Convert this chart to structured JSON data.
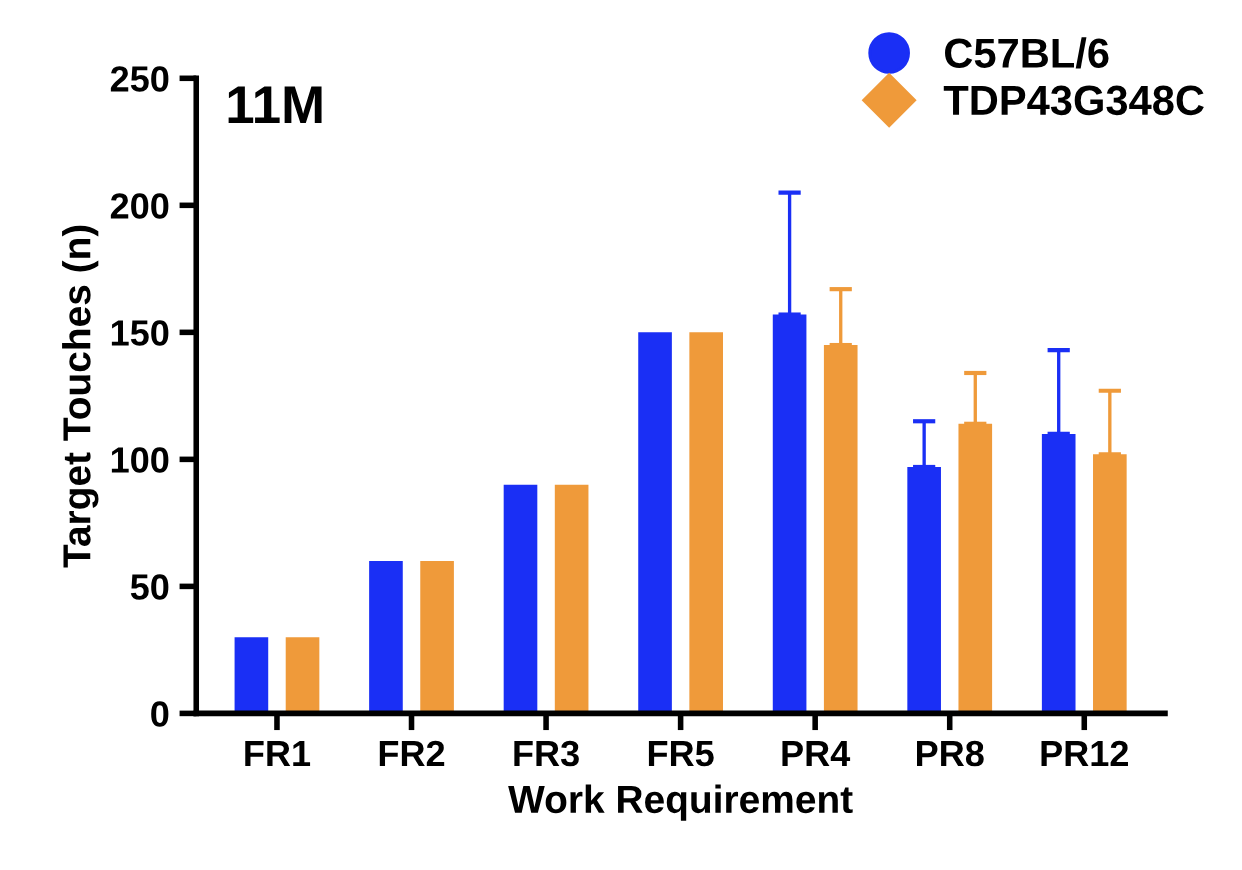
{
  "chart_data": {
    "type": "bar",
    "title": "11M",
    "xlabel": "Work Requirement",
    "ylabel": "Target Touches (n)",
    "categories": [
      "FR1",
      "FR2",
      "FR3",
      "FR5",
      "PR4",
      "PR8",
      "PR12"
    ],
    "series": [
      {
        "name": "C57BL/6",
        "color": "#1a2ff5",
        "marker": "circle",
        "values": [
          30,
          60,
          90,
          150,
          157,
          97,
          110
        ],
        "errors": [
          null,
          null,
          null,
          null,
          [
            157,
            205
          ],
          [
            97,
            115
          ],
          [
            110,
            143
          ]
        ]
      },
      {
        "name": "TDP43G348C",
        "color": "#ef9a3a",
        "marker": "diamond",
        "values": [
          30,
          60,
          90,
          150,
          145,
          114,
          102
        ],
        "errors": [
          null,
          null,
          null,
          null,
          [
            145,
            167
          ],
          [
            114,
            134
          ],
          [
            102,
            127
          ]
        ]
      }
    ],
    "ylim": [
      0,
      250
    ],
    "yticks": [
      0,
      50,
      100,
      150,
      200,
      250
    ],
    "grid": false,
    "legend": "top right"
  }
}
